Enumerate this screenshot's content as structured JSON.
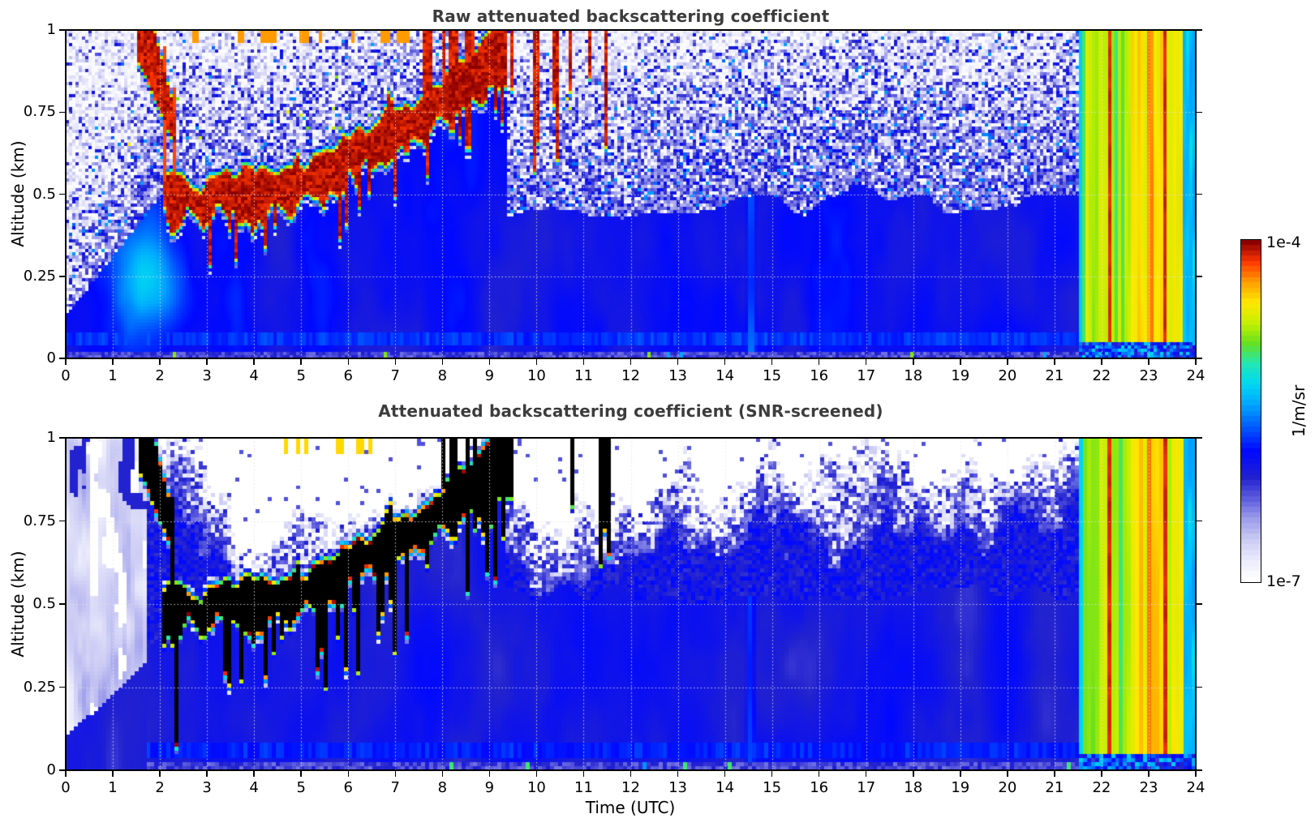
{
  "figure": {
    "panels": [
      {
        "title": "Raw attenuated backscattering coefficient"
      },
      {
        "title": "Attenuated backscattering coefficient (SNR-screened)"
      }
    ],
    "xlabel": "Time (UTC)",
    "ylabel": "Altitude (km)",
    "colorbar": {
      "unit": "1/m/sr",
      "max_label": "1e-4",
      "min_label": "1e-7"
    }
  },
  "chart_data": {
    "type": "heatmap",
    "title": "Raw attenuated backscattering coefficient",
    "subtitle": "Attenuated backscattering coefficient (SNR-screened)",
    "xlabel": "Time (UTC)",
    "ylabel": "Altitude (km)",
    "x_range": [
      0,
      24
    ],
    "y_range": [
      0,
      1
    ],
    "x_ticks": [
      0,
      1,
      2,
      3,
      4,
      5,
      6,
      7,
      8,
      9,
      10,
      11,
      12,
      13,
      14,
      15,
      16,
      17,
      18,
      19,
      20,
      21,
      22,
      23,
      24
    ],
    "y_ticks": [
      0,
      0.25,
      0.5,
      0.75,
      1
    ],
    "y_tick_labels": [
      "0",
      "0.25",
      "0.5",
      "0.75",
      "1"
    ],
    "grid_hours": [
      1,
      2,
      3,
      4,
      5,
      6,
      7,
      8,
      9,
      10,
      11,
      12,
      13,
      14,
      15,
      16,
      17,
      18,
      19,
      20,
      21,
      22,
      23
    ],
    "grid_altitudes": [
      0.25,
      0.5,
      0.75
    ],
    "value_unit": "1/m/sr",
    "value_scale": "log10",
    "value_min": 1e-07,
    "value_max": 0.0001,
    "legend_position": "right-colorbar",
    "colormap_stops": [
      [
        0.0,
        "#ffffff"
      ],
      [
        0.06,
        "#e9e9fb"
      ],
      [
        0.12,
        "#c9c9f4"
      ],
      [
        0.18,
        "#9b9bea"
      ],
      [
        0.24,
        "#5b5bde"
      ],
      [
        0.3,
        "#2222cf"
      ],
      [
        0.38,
        "#0008ff"
      ],
      [
        0.46,
        "#0064ff"
      ],
      [
        0.52,
        "#00a8ff"
      ],
      [
        0.58,
        "#00d8f0"
      ],
      [
        0.64,
        "#22e8b4"
      ],
      [
        0.7,
        "#66e11e"
      ],
      [
        0.76,
        "#c6ef00"
      ],
      [
        0.82,
        "#ffe800"
      ],
      [
        0.88,
        "#ffa000"
      ],
      [
        0.94,
        "#ff3800"
      ],
      [
        1.0,
        "#8c0000"
      ]
    ],
    "features": {
      "aerosol_layer_track_t_z": [
        [
          2.05,
          0.5
        ],
        [
          2.3,
          0.49
        ],
        [
          2.6,
          0.5
        ],
        [
          2.9,
          0.46
        ],
        [
          3.2,
          0.52
        ],
        [
          3.5,
          0.5
        ],
        [
          3.9,
          0.49
        ],
        [
          4.3,
          0.52
        ],
        [
          4.7,
          0.51
        ],
        [
          5.1,
          0.54
        ],
        [
          5.5,
          0.57
        ],
        [
          5.9,
          0.6
        ],
        [
          6.3,
          0.64
        ],
        [
          6.7,
          0.67
        ],
        [
          7.1,
          0.7
        ],
        [
          7.5,
          0.72
        ],
        [
          7.9,
          0.77
        ],
        [
          8.3,
          0.82
        ],
        [
          8.7,
          0.86
        ],
        [
          9.1,
          0.9
        ],
        [
          9.35,
          0.93
        ]
      ],
      "layer_halfwidth_km": 0.05,
      "layer_peak_value": 0.0001,
      "descending_cloud": {
        "t_start": 1.52,
        "t_end": 2.32,
        "z_start": 1.06,
        "z_end": 0.7
      },
      "cloud_streak_period_t": [
        7.6,
        11.65
      ],
      "cloud_streak_count": 26,
      "screened_black_streak_windows_t": [
        [
          7.85,
          9.7
        ],
        [
          11.25,
          11.62
        ]
      ],
      "rain_period_t": [
        21.52,
        24.0
      ],
      "rain_typical_value": 2.5e-05,
      "rain_red_streak_times": [
        22.16,
        23.37
      ],
      "rain_cyan_band_t": [
        23.74,
        24.0
      ],
      "surface_band_z": [
        0.035,
        0.08
      ],
      "boundary_layer_background_value": 1e-06,
      "screened_faint_region_t_end": 1.72,
      "screened_fuzz_top_t_z": [
        [
          2.0,
          0.95
        ],
        [
          3.0,
          0.82
        ],
        [
          4.0,
          0.62
        ],
        [
          6.0,
          0.64
        ],
        [
          8.0,
          0.8
        ],
        [
          10.0,
          0.7
        ],
        [
          12.0,
          0.73
        ],
        [
          13.0,
          0.82
        ],
        [
          14.0,
          0.76
        ],
        [
          15.0,
          0.82
        ],
        [
          16.0,
          0.79
        ],
        [
          17.0,
          0.86
        ],
        [
          18.0,
          0.83
        ],
        [
          19.0,
          0.86
        ],
        [
          20.0,
          0.82
        ],
        [
          21.4,
          0.96
        ]
      ]
    }
  }
}
